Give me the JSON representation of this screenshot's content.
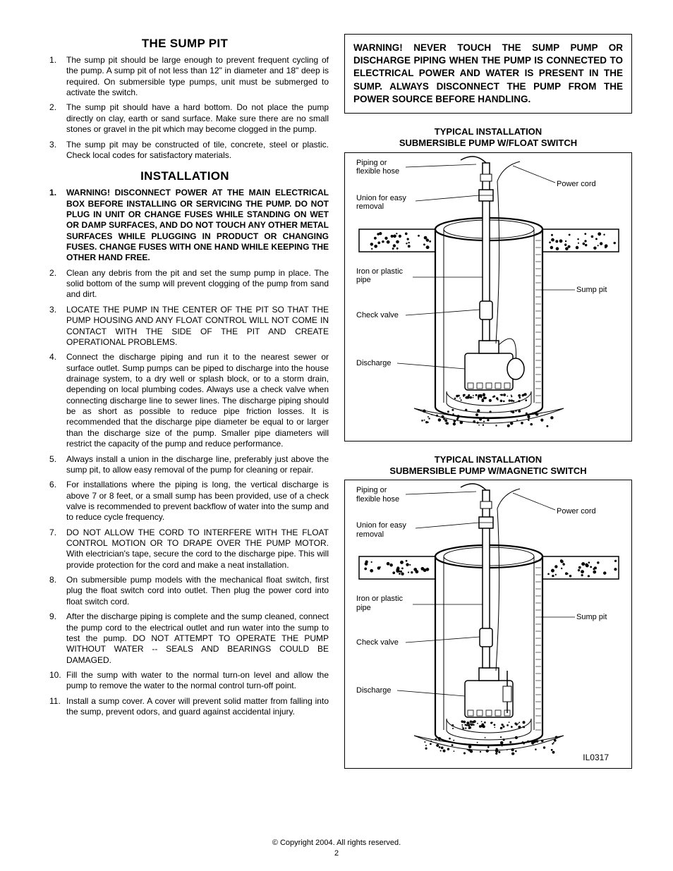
{
  "left": {
    "heading_sump": "THE SUMP PIT",
    "sump_items": [
      "The sump pit should be large enough to prevent frequent cycling of the pump. A sump pit of not less than 12\" in diameter and 18\" deep is required. On submersible type pumps, unit must be submerged to activate the switch.",
      "The sump pit should have a hard bottom. Do not place the pump directly on clay, earth or sand surface. Make sure there are no small stones or gravel in the pit which may become clogged in the pump.",
      "The sump pit may be constructed of tile, concrete, steel or plastic. Check local codes for satisfactory materials."
    ],
    "heading_install": "INSTALLATION",
    "install_items": [
      {
        "bold": true,
        "text": "WARNING! DISCONNECT POWER AT THE MAIN ELECTRICAL BOX BEFORE INSTALLING OR SERVICING THE PUMP. DO NOT PLUG IN UNIT OR CHANGE FUSES WHILE STANDING ON WET OR DAMP SURFACES, AND DO NOT TOUCH ANY OTHER METAL SURFACES WHILE PLUGGING IN PRODUCT OR CHANGING FUSES. CHANGE FUSES WITH ONE HAND WHILE KEEPING THE OTHER HAND FREE."
      },
      {
        "bold": false,
        "text": "Clean any debris from the pit and set the sump pump in place. The solid bottom of the sump will prevent clogging of the pump from sand and dirt."
      },
      {
        "bold": false,
        "text": "LOCATE THE PUMP IN THE CENTER OF THE PIT SO THAT THE PUMP HOUSING AND ANY FLOAT CONTROL WILL NOT COME IN CONTACT WITH THE SIDE OF THE PIT AND CREATE OPERATIONAL PROBLEMS."
      },
      {
        "bold": false,
        "text": "Connect the discharge piping and run it to the nearest sewer or surface outlet. Sump pumps can be piped to discharge into the house drainage system, to a dry well or splash block, or to a storm drain, depending on local plumbing codes. Always use a check valve when connecting discharge line to sewer lines. The discharge piping should be as short as possible to reduce pipe friction losses. It is recommended that the discharge pipe diameter be equal to or larger than the discharge size of the pump. Smaller pipe diameters will restrict the capacity of the pump and reduce performance."
      },
      {
        "bold": false,
        "text": "Always install a union in the discharge line, preferably just above the sump pit, to allow easy removal of the pump for cleaning or repair."
      },
      {
        "bold": false,
        "text": "For installations where the piping is long, the vertical discharge is above 7 or 8 feet, or a small sump has been provided, use of a check valve is recommended to prevent backflow of water into the sump and to reduce cycle frequency."
      },
      {
        "bold": false,
        "text": "DO NOT ALLOW THE CORD TO INTERFERE WITH THE FLOAT CONTROL MOTION OR TO DRAPE OVER THE PUMP MOTOR. With electrician's tape, secure the cord to the discharge pipe. This will provide protection for the cord and make a neat installation."
      },
      {
        "bold": false,
        "text": "On submersible pump models with the mechanical float switch, first plug the float switch cord into outlet. Then plug the power cord into float switch cord."
      },
      {
        "bold": false,
        "text": "After the discharge piping is complete and the sump cleaned, connect the pump cord to the electrical outlet and run water into the sump to test the pump. DO NOT ATTEMPT TO OPERATE THE PUMP WITHOUT WATER -- SEALS AND BEARINGS COULD BE DAMAGED."
      },
      {
        "bold": false,
        "text": "Fill the sump with water to the normal turn-on level and allow the pump to remove the water to the normal control turn-off point."
      },
      {
        "bold": false,
        "text": "Install a sump cover. A cover will prevent solid matter from falling into the sump, prevent odors, and guard against accidental injury."
      }
    ]
  },
  "right": {
    "warning_box": "WARNING! NEVER TOUCH THE SUMP PUMP OR DISCHARGE PIPING WHEN THE PUMP IS CONNECTED TO ELECTRICAL POWER AND WATER IS PRESENT IN THE SUMP.  ALWAYS DISCONNECT THE PUMP FROM THE POWER SOURCE BEFORE HANDLING.",
    "fig1_title_l1": "TYPICAL INSTALLATION",
    "fig1_title_l2": "SUBMERSIBLE PUMP W/FLOAT SWITCH",
    "fig2_title_l1": "TYPICAL INSTALLATION",
    "fig2_title_l2": "SUBMERSIBLE PUMP W/MAGNETIC SWITCH",
    "labels": {
      "piping": "Piping or\nflexible hose",
      "power_cord": "Power cord",
      "union": "Union for easy\nremoval",
      "iron_pipe": "Iron or plastic\npipe",
      "sump_pit": "Sump pit",
      "check_valve": "Check valve",
      "discharge": "Discharge"
    },
    "fig_ref": "IL0317"
  },
  "footer": {
    "copyright": "© Copyright 2004. All rights reserved.",
    "page": "2"
  },
  "style": {
    "diagram": {
      "stroke": "#000000",
      "fill_none": "none",
      "stroke_width_thin": 1,
      "stroke_width_med": 1.5,
      "stroke_width_thick": 2.2
    }
  }
}
